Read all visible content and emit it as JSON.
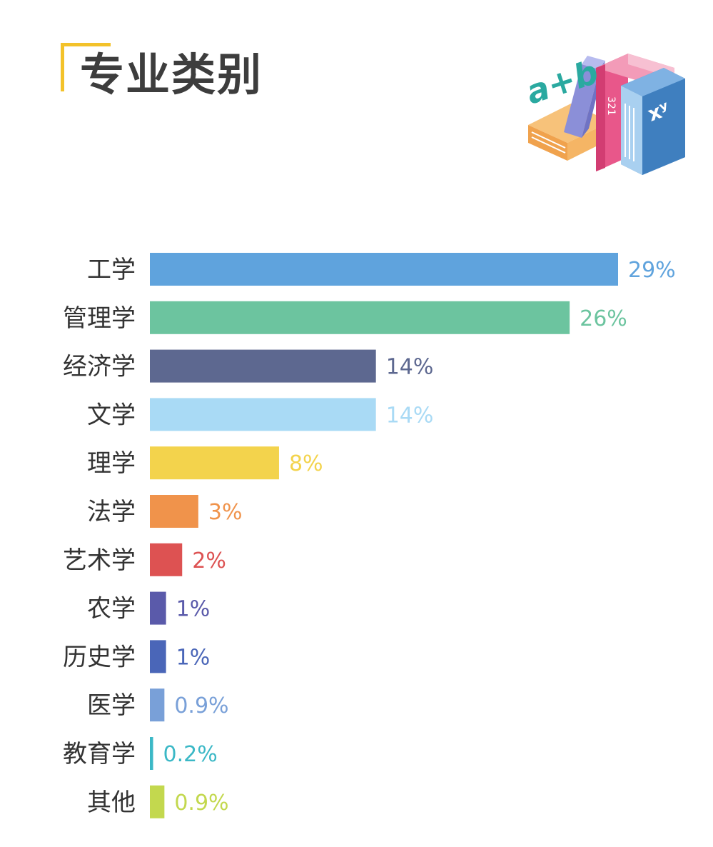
{
  "header": {
    "title": "专业类别",
    "illustration": {
      "name": "books-illustration",
      "text": "a+b"
    }
  },
  "colors": {
    "accent": "#f3c22a",
    "title": "#3d3d3d"
  },
  "chart_data": {
    "type": "bar",
    "orientation": "horizontal",
    "title": "",
    "xlabel": "",
    "ylabel": "",
    "xlim": [
      0,
      30
    ],
    "grid": false,
    "categories": [
      "工学",
      "管理学",
      "经济学",
      "文学",
      "理学",
      "法学",
      "艺术学",
      "农学",
      "历史学",
      "医学",
      "教育学",
      "其他"
    ],
    "values": [
      29,
      26,
      14,
      14,
      8,
      3,
      2,
      1,
      1,
      0.9,
      0.2,
      0.9
    ],
    "labels": [
      "29%",
      "26%",
      "14%",
      "14%",
      "8%",
      "3%",
      "2%",
      "1%",
      "1%",
      "0.9%",
      "0.2%",
      "0.9%"
    ],
    "bar_colors": [
      "#5fa3dd",
      "#6cc49f",
      "#5d6890",
      "#a9daf5",
      "#f3d34c",
      "#f0934b",
      "#dd5252",
      "#5a5aaa",
      "#4a66b8",
      "#79a0d8",
      "#3bb8c6",
      "#c3d84e"
    ]
  }
}
